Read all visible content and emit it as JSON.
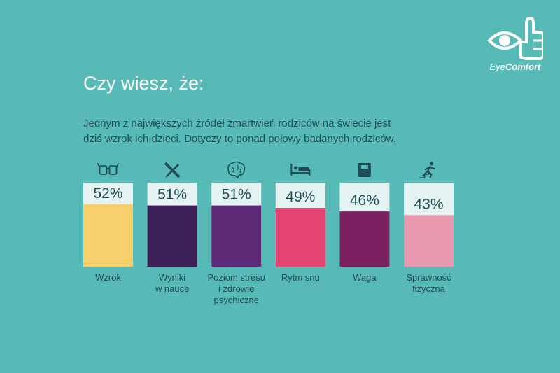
{
  "logo": {
    "text_light": "Eye",
    "text_bold": "Comfort"
  },
  "heading": "Czy wiesz, że:",
  "description": [
    "Jednym z największych źródeł zmartwień rodziców na świecie jest",
    "dziś wzrok ich dzieci. Dotyczy to ponad połowy badanych rodziców."
  ],
  "chart_data": {
    "type": "bar",
    "categories": [
      [
        "Wzrok"
      ],
      [
        "Wyniki",
        "w nauce"
      ],
      [
        "Poziom stresu",
        "i zdrowie",
        "psychiczne"
      ],
      [
        "Rytm snu"
      ],
      [
        "Waga"
      ],
      [
        "Sprawność",
        "fizyczna"
      ]
    ],
    "values": [
      52,
      51,
      51,
      49,
      46,
      43
    ],
    "value_labels": [
      "52%",
      "51%",
      "51%",
      "49%",
      "46%",
      "43%"
    ],
    "icons": [
      "glasses-icon",
      "pencil-ruler-icon",
      "brain-icon",
      "bed-icon",
      "scale-icon",
      "runner-icon"
    ],
    "colors": [
      "#f7cf6c",
      "#3d2158",
      "#5e2a78",
      "#e54472",
      "#7a1f60",
      "#e99aae"
    ],
    "ylim": [
      0,
      100
    ],
    "title": "",
    "xlabel": "",
    "ylabel": ""
  },
  "colors": {
    "background": "#58bab7",
    "bar_track": "#e5f3f2",
    "label_text": "#1f4e56",
    "value_text": "#1f4e56",
    "icon": "#1f4e56"
  }
}
